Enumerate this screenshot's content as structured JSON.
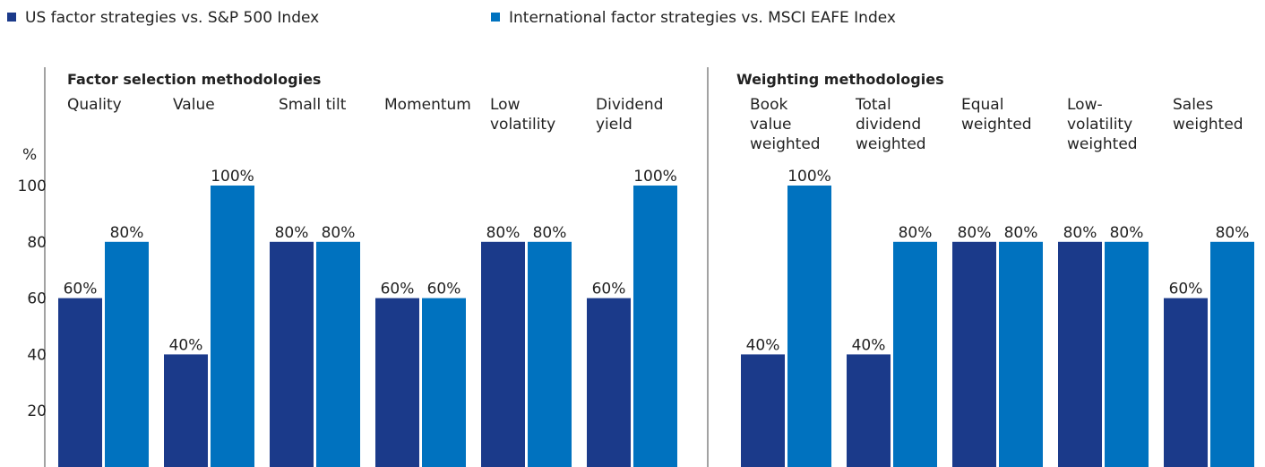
{
  "chart_data": {
    "type": "bar",
    "series": [
      {
        "name": "US factor strategies vs. S&P 500 Index",
        "color": "#1b3a8a"
      },
      {
        "name": "International factor strategies vs. MSCI EAFE Index",
        "color": "#0072bf"
      }
    ],
    "y_unit": "%",
    "ylim": [
      0,
      100
    ],
    "yticks": [
      20,
      40,
      60,
      80,
      100
    ],
    "panels": [
      {
        "title": "Factor selection methodologies",
        "categories": [
          "Quality",
          "Value",
          "Small tilt",
          "Momentum",
          "Low\nvolatility",
          "Dividend\nyield"
        ],
        "values": [
          [
            60,
            40,
            80,
            60,
            80,
            60
          ],
          [
            80,
            100,
            80,
            60,
            80,
            100
          ]
        ],
        "value_labels": [
          [
            "60%",
            "40%",
            "80%",
            "60%",
            "80%",
            "60%"
          ],
          [
            "80%",
            "100%",
            "80%",
            "60%",
            "80%",
            "100%"
          ]
        ]
      },
      {
        "title": "Weighting methodologies",
        "categories": [
          "Book\nvalue\nweighted",
          "Total\ndividend\nweighted",
          "Equal\nweighted",
          "Low-\nvolatility\nweighted",
          "Sales\nweighted"
        ],
        "values": [
          [
            40,
            40,
            80,
            80,
            60
          ],
          [
            100,
            80,
            80,
            80,
            80
          ]
        ],
        "value_labels": [
          [
            "40%",
            "40%",
            "80%",
            "80%",
            "60%"
          ],
          [
            "100%",
            "80%",
            "80%",
            "80%",
            "80%"
          ]
        ]
      }
    ]
  }
}
